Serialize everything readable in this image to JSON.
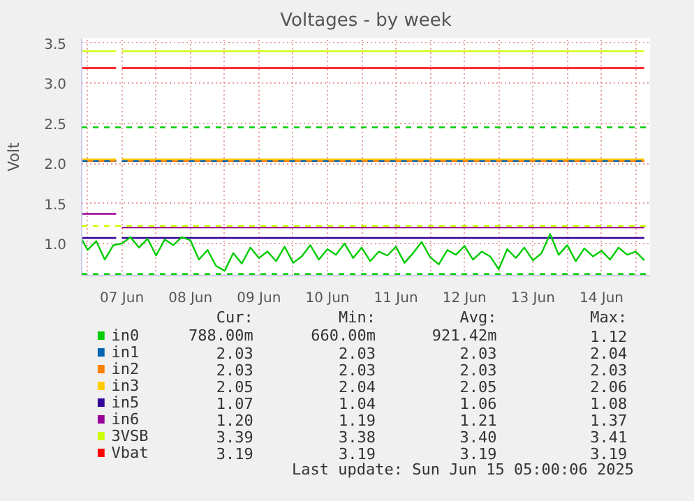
{
  "chart_data": {
    "type": "line",
    "title": "Voltages - by week",
    "ylabel": "Volt",
    "xlim": [
      "2025-06-06T21:55",
      "2025-06-15T05:00"
    ],
    "ylim": [
      0.6,
      3.56
    ],
    "yticks": [
      {
        "value": 1.0,
        "label": "1.0"
      },
      {
        "value": 1.5,
        "label": "1.5"
      },
      {
        "value": 2.0,
        "label": "2.0"
      },
      {
        "value": 2.5,
        "label": "2.5"
      },
      {
        "value": 3.0,
        "label": "3.0"
      },
      {
        "value": 3.5,
        "label": "3.5"
      }
    ],
    "xticks": [
      {
        "value": "2025-06-07T00:00",
        "label": null
      },
      {
        "value": "2025-06-07T12:00",
        "label": "07 Jun"
      },
      {
        "value": "2025-06-08T00:00",
        "label": null
      },
      {
        "value": "2025-06-08T12:00",
        "label": "08 Jun"
      },
      {
        "value": "2025-06-09T00:00",
        "label": null
      },
      {
        "value": "2025-06-09T12:00",
        "label": "09 Jun"
      },
      {
        "value": "2025-06-10T00:00",
        "label": null
      },
      {
        "value": "2025-06-10T12:00",
        "label": "10 Jun"
      },
      {
        "value": "2025-06-11T00:00",
        "label": null
      },
      {
        "value": "2025-06-11T12:00",
        "label": "11 Jun"
      },
      {
        "value": "2025-06-12T00:00",
        "label": null
      },
      {
        "value": "2025-06-12T12:00",
        "label": "12 Jun"
      },
      {
        "value": "2025-06-13T00:00",
        "label": null
      },
      {
        "value": "2025-06-13T12:00",
        "label": "13 Jun"
      },
      {
        "value": "2025-06-14T00:00",
        "label": null
      },
      {
        "value": "2025-06-14T12:00",
        "label": "14 Jun"
      },
      {
        "value": "2025-06-15T00:00",
        "label": null
      }
    ],
    "grid": true,
    "legend": "bottom",
    "x": [
      "2025-06-06T22:00",
      "2025-06-07T00:00",
      "2025-06-07T03:00",
      "2025-06-07T06:00",
      "2025-06-07T09:00",
      "2025-06-07T12:00",
      "2025-06-07T15:00",
      "2025-06-07T18:00",
      "2025-06-07T21:00",
      "2025-06-08T00:00",
      "2025-06-08T03:00",
      "2025-06-08T06:00",
      "2025-06-08T09:00",
      "2025-06-08T12:00",
      "2025-06-08T15:00",
      "2025-06-08T18:00",
      "2025-06-08T21:00",
      "2025-06-09T00:00",
      "2025-06-09T03:00",
      "2025-06-09T06:00",
      "2025-06-09T09:00",
      "2025-06-09T12:00",
      "2025-06-09T15:00",
      "2025-06-09T18:00",
      "2025-06-09T21:00",
      "2025-06-10T00:00",
      "2025-06-10T03:00",
      "2025-06-10T06:00",
      "2025-06-10T09:00",
      "2025-06-10T12:00",
      "2025-06-10T15:00",
      "2025-06-10T18:00",
      "2025-06-10T21:00",
      "2025-06-11T00:00",
      "2025-06-11T03:00",
      "2025-06-11T06:00",
      "2025-06-11T09:00",
      "2025-06-11T12:00",
      "2025-06-11T15:00",
      "2025-06-11T18:00",
      "2025-06-11T21:00",
      "2025-06-12T00:00",
      "2025-06-12T03:00",
      "2025-06-12T06:00",
      "2025-06-12T09:00",
      "2025-06-12T12:00",
      "2025-06-12T15:00",
      "2025-06-12T18:00",
      "2025-06-12T21:00",
      "2025-06-13T00:00",
      "2025-06-13T03:00",
      "2025-06-13T06:00",
      "2025-06-13T09:00",
      "2025-06-13T12:00",
      "2025-06-13T15:00",
      "2025-06-13T18:00",
      "2025-06-13T21:00",
      "2025-06-14T00:00",
      "2025-06-14T03:00",
      "2025-06-14T06:00",
      "2025-06-14T09:00",
      "2025-06-14T12:00",
      "2025-06-14T15:00",
      "2025-06-14T18:00",
      "2025-06-14T21:00",
      "2025-06-15T00:00",
      "2025-06-15T03:00"
    ],
    "series": [
      {
        "name": "in0",
        "color": "#00cc00",
        "values": [
          1.05,
          0.92,
          1.03,
          0.8,
          0.98,
          1.0,
          1.08,
          0.95,
          1.06,
          0.85,
          1.05,
          0.98,
          1.08,
          1.04,
          0.8,
          0.92,
          0.72,
          0.66,
          0.88,
          0.75,
          0.95,
          0.82,
          0.9,
          0.78,
          0.96,
          0.76,
          0.84,
          0.98,
          0.8,
          0.93,
          0.86,
          1.0,
          0.82,
          0.95,
          0.78,
          0.9,
          0.85,
          0.96,
          0.76,
          0.88,
          1.02,
          0.83,
          0.74,
          0.92,
          0.86,
          0.97,
          0.8,
          0.9,
          0.84,
          0.68,
          0.93,
          0.82,
          0.95,
          0.79,
          0.88,
          1.12,
          0.86,
          0.98,
          0.78,
          0.94,
          0.84,
          0.91,
          0.8,
          0.95,
          0.86,
          0.9,
          0.79
        ]
      },
      {
        "name": "in1",
        "color": "#0066b3",
        "line_style": "dashed",
        "x": [
          "2025-06-06T22:00",
          "2025-06-07T10:00",
          "2025-06-07T11:00",
          "2025-06-07T12:00",
          "2025-06-15T03:00"
        ],
        "values": [
          2.03,
          2.03,
          null,
          2.03,
          2.03
        ]
      },
      {
        "name": "in2",
        "color": "#ff8000",
        "x": [
          "2025-06-06T22:00",
          "2025-06-07T10:00",
          "2025-06-07T11:00",
          "2025-06-07T12:00",
          "2025-06-15T03:00"
        ],
        "values": [
          2.03,
          2.03,
          null,
          2.03,
          2.03
        ]
      },
      {
        "name": "in3",
        "color": "#ffcc00",
        "x": [
          "2025-06-06T22:00",
          "2025-06-07T10:00",
          "2025-06-07T11:00",
          "2025-06-07T12:00",
          "2025-06-15T03:00"
        ],
        "values": [
          2.05,
          2.05,
          null,
          2.05,
          2.05
        ]
      },
      {
        "name": "in5",
        "color": "#330099",
        "x": [
          "2025-06-06T22:00",
          "2025-06-07T10:00",
          "2025-06-07T11:00",
          "2025-06-07T12:00",
          "2025-06-15T03:00"
        ],
        "values": [
          1.07,
          1.07,
          null,
          1.07,
          1.07
        ]
      },
      {
        "name": "in6",
        "color": "#990099",
        "x": [
          "2025-06-06T22:00",
          "2025-06-07T10:00",
          "2025-06-07T11:00",
          "2025-06-07T12:00",
          "2025-06-15T03:00"
        ],
        "values": [
          1.37,
          1.37,
          null,
          1.2,
          1.2
        ]
      },
      {
        "name": "3VSB",
        "color": "#ccff00",
        "x": [
          "2025-06-06T22:00",
          "2025-06-07T10:00",
          "2025-06-07T11:00",
          "2025-06-07T12:00",
          "2025-06-15T03:00"
        ],
        "values": [
          3.4,
          3.4,
          null,
          3.4,
          3.4
        ]
      },
      {
        "name": "Vbat",
        "color": "#ff0000",
        "x": [
          "2025-06-06T22:00",
          "2025-06-07T10:00",
          "2025-06-07T11:00",
          "2025-06-07T12:00",
          "2025-06-15T03:00"
        ],
        "values": [
          3.19,
          3.19,
          null,
          3.19,
          3.19
        ]
      }
    ],
    "ref_lines": [
      {
        "axis": "y",
        "value": 2.45,
        "color": "#00cc00",
        "line_style": "dashed"
      },
      {
        "axis": "y",
        "value": 0.62,
        "color": "#00cc00",
        "line_style": "dashed"
      },
      {
        "axis": "y",
        "value": 1.22,
        "color": "#ccff00",
        "line_style": "dashed"
      }
    ],
    "annotations": [
      "Cur:",
      "Min:",
      "Avg:",
      "Max:",
      "788.00m",
      "660.00m",
      "921.42m",
      "1.12",
      "2.03",
      "2.03",
      "2.03",
      "2.04",
      "2.03",
      "2.03",
      "2.03",
      "2.03",
      "2.05",
      "2.04",
      "2.05",
      "2.06",
      "1.07",
      "1.04",
      "1.06",
      "1.08",
      "1.20",
      "1.19",
      "1.21",
      "1.37",
      "3.39",
      "3.38",
      "3.40",
      "3.41",
      "3.19",
      "3.19",
      "3.19",
      "3.19",
      "Last update: Sun Jun 15 05:00:06 2025"
    ]
  }
}
